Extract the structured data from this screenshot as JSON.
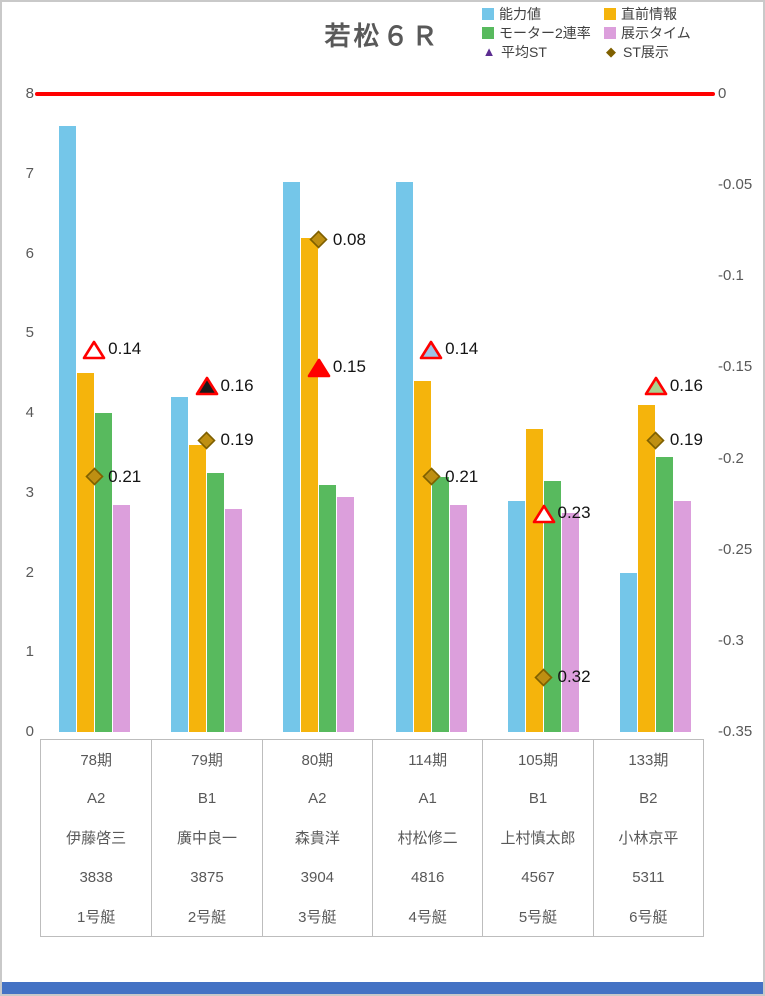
{
  "title": "若松６Ｒ",
  "legend": [
    {
      "label": "能力値",
      "marker": "square",
      "color": "#74C6E9"
    },
    {
      "label": "直前情報",
      "marker": "square",
      "color": "#F5B40C"
    },
    {
      "label": "モーター2連率",
      "marker": "square",
      "color": "#58BA5E"
    },
    {
      "label": "展示タイム",
      "marker": "square",
      "color": "#DC9FDC"
    },
    {
      "label": "平均ST",
      "marker": "triangle",
      "color": "#5C2D91"
    },
    {
      "label": "ST展示",
      "marker": "diamond",
      "color": "#7F6000"
    }
  ],
  "chart_data": {
    "type": "bar",
    "title": "若松６Ｒ",
    "categories": [
      {
        "period": "78期",
        "grade": "A2",
        "name": "伊藤啓三",
        "reg_no": "3838",
        "boat": "1号艇"
      },
      {
        "period": "79期",
        "grade": "B1",
        "name": "廣中良一",
        "reg_no": "3875",
        "boat": "2号艇"
      },
      {
        "period": "80期",
        "grade": "A2",
        "name": "森貴洋",
        "reg_no": "3904",
        "boat": "3号艇"
      },
      {
        "period": "114期",
        "grade": "A1",
        "name": "村松修二",
        "reg_no": "4816",
        "boat": "4号艇"
      },
      {
        "period": "105期",
        "grade": "B1",
        "name": "上村慎太郎",
        "reg_no": "4567",
        "boat": "5号艇"
      },
      {
        "period": "133期",
        "grade": "B2",
        "name": "小林京平",
        "reg_no": "5311",
        "boat": "6号艇"
      }
    ],
    "bar_series": [
      {
        "name": "能力値",
        "color": "#74C6E9",
        "values": [
          7.6,
          4.2,
          6.9,
          6.9,
          2.9,
          2.0
        ]
      },
      {
        "name": "直前情報",
        "color": "#F5B40C",
        "values": [
          4.5,
          3.6,
          6.2,
          4.4,
          3.8,
          4.1
        ]
      },
      {
        "name": "モーター2連率",
        "color": "#58BA5E",
        "values": [
          4.0,
          3.25,
          3.1,
          3.2,
          3.15,
          3.45
        ]
      },
      {
        "name": "展示タイム",
        "color": "#DC9FDC",
        "values": [
          2.85,
          2.8,
          2.95,
          2.85,
          2.75,
          2.9
        ]
      }
    ],
    "scatter_series": [
      {
        "name": "平均ST",
        "marker": "triangle",
        "axis": "right",
        "values": [
          0.14,
          0.16,
          0.15,
          0.14,
          0.23,
          0.16
        ],
        "labels": [
          "0.14",
          "0.16",
          "0.15",
          "0.14",
          "0.23",
          "0.16"
        ],
        "fills": [
          "#FFFFFF",
          "#1A1A1A",
          "#FF0000",
          "#9DC3E6",
          "#FFFFFF",
          "#A9D18E"
        ],
        "stroke": "#FF0000"
      },
      {
        "name": "ST展示",
        "marker": "diamond",
        "axis": "right",
        "values": [
          0.21,
          0.19,
          0.08,
          0.21,
          0.32,
          0.19
        ],
        "labels": [
          "0.21",
          "0.19",
          "0.08",
          "0.21",
          "0.32",
          "0.19"
        ],
        "fill": "#BE8F12",
        "stroke": "#7F6000"
      }
    ],
    "left_axis": {
      "min": 0,
      "max": 8,
      "ticks": [
        "8",
        "7",
        "6",
        "5",
        "4",
        "3",
        "2",
        "1",
        "0"
      ]
    },
    "right_axis": {
      "min": -0.35,
      "max": 0,
      "ticks": [
        "0",
        "-0.05",
        "-0.1",
        "-0.15",
        "-0.2",
        "-0.25",
        "-0.3",
        "-0.35"
      ]
    },
    "ref_line": {
      "value": 8,
      "color": "#FF0000"
    },
    "grid": false,
    "legend_position": "top-right"
  },
  "bottom_bar_color": "#4472C4"
}
